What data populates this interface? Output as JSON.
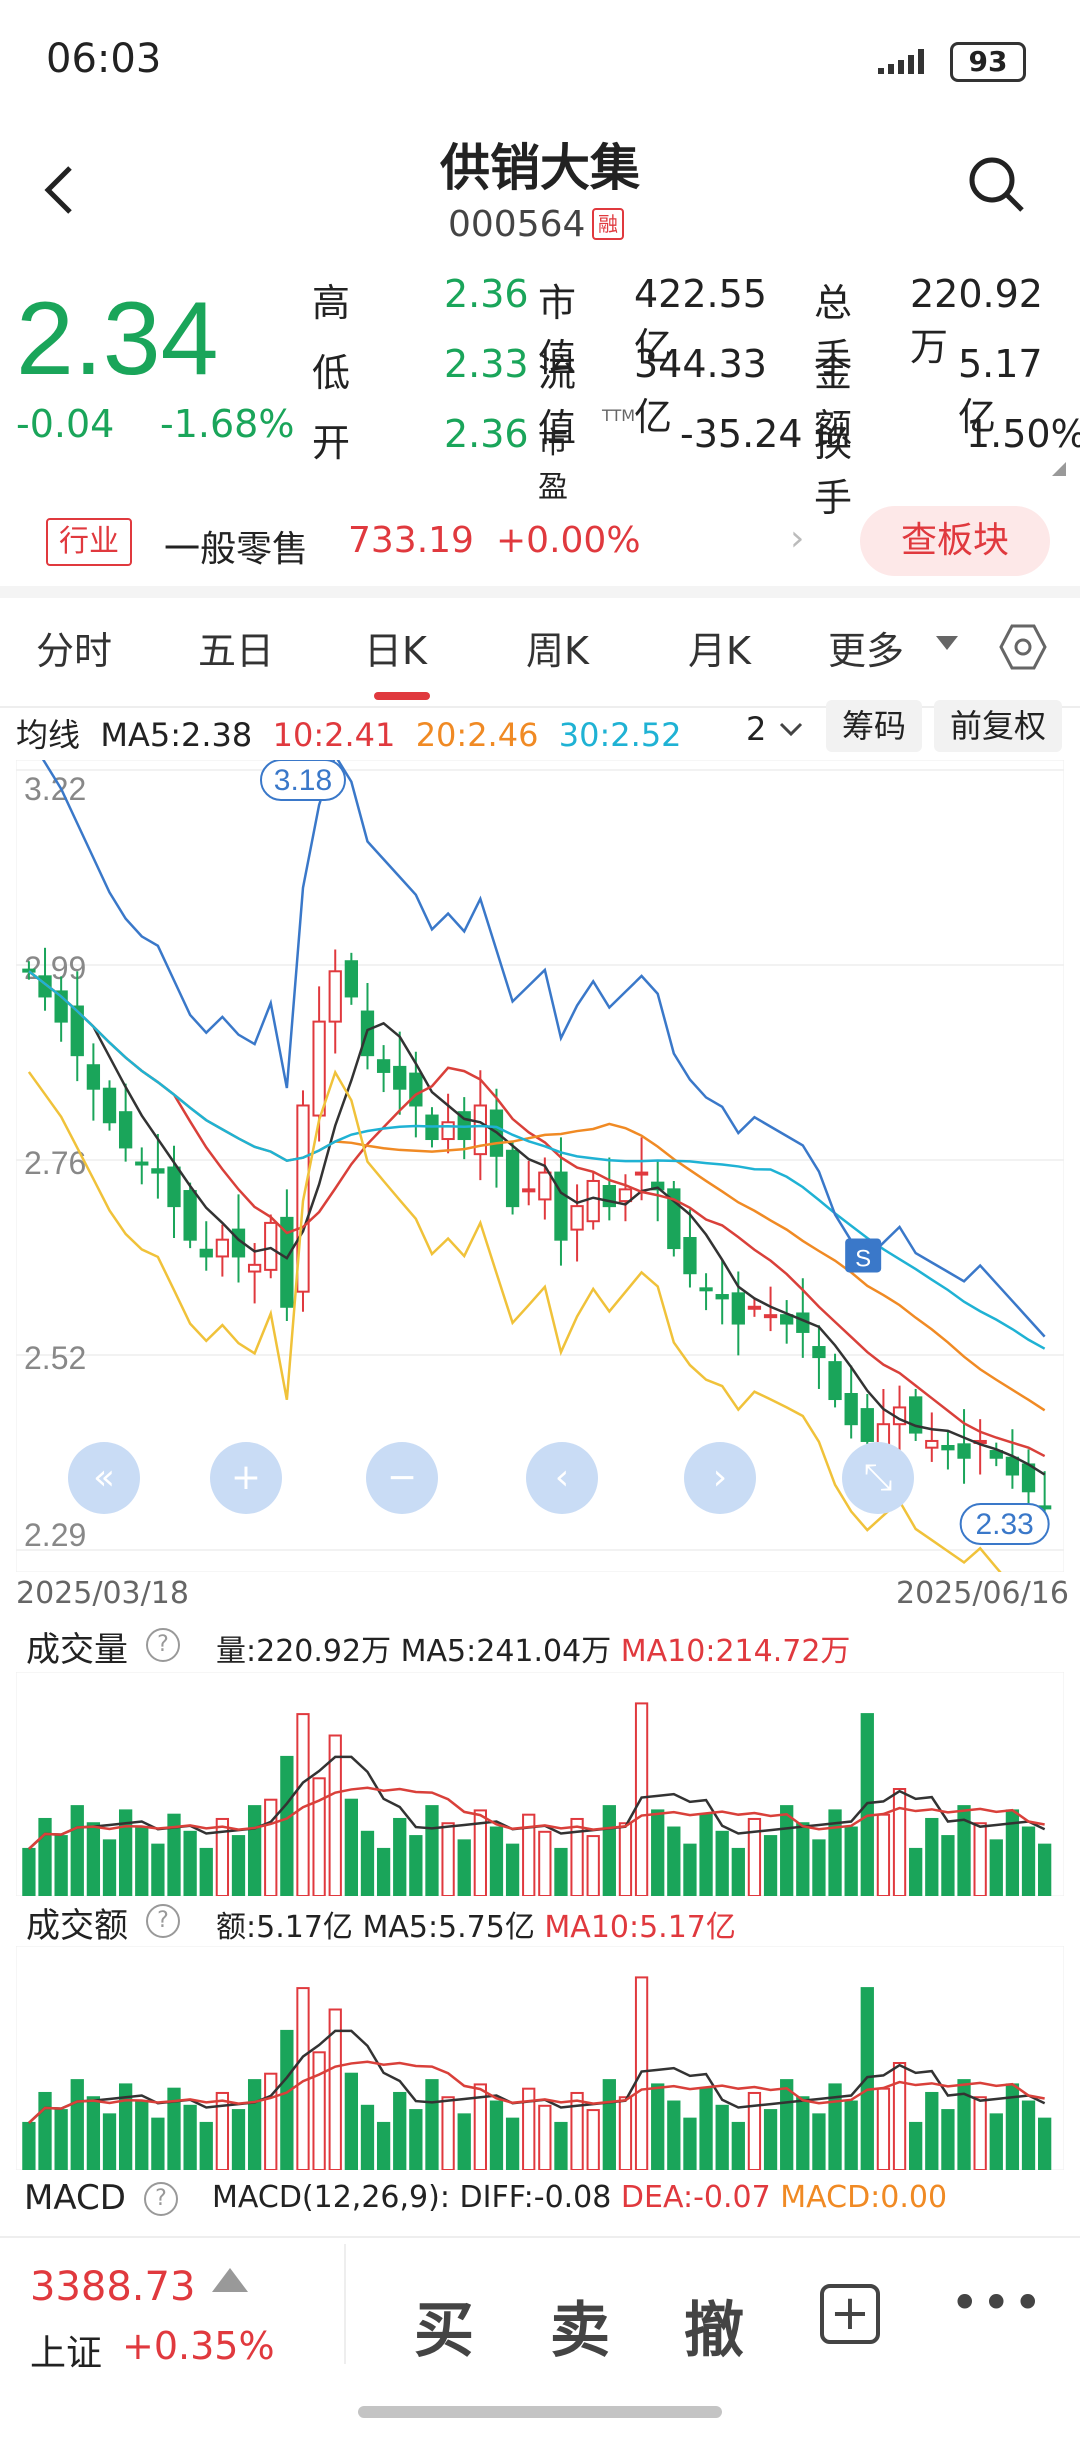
{
  "status": {
    "time": "06:03",
    "battery": "93"
  },
  "header": {
    "title": "供销大集",
    "code": "000564",
    "margin_badge": "融"
  },
  "quote": {
    "price": "2.34",
    "change": "-0.04",
    "change_pct": "-1.68%",
    "rows": [
      {
        "l1": "高",
        "v1": "2.36",
        "l2": "市值",
        "v2": "422.55亿",
        "l3": "总手",
        "v3": "220.92万"
      },
      {
        "l1": "低",
        "v1": "2.33",
        "l2": "流值",
        "v2": "344.33亿",
        "l3": "金额",
        "v3": "5.17亿"
      },
      {
        "l1": "开",
        "v1": "2.36",
        "l2": "市盈",
        "v2": "-35.24",
        "l3": "换手",
        "v3": "1.50%"
      }
    ],
    "pe_sup": "TTM"
  },
  "industry": {
    "tag": "行业",
    "name": "一般零售",
    "value": "733.19",
    "pct": "+0.00%",
    "button": "查板块"
  },
  "tabs": [
    "分时",
    "五日",
    "日K",
    "周K",
    "月K",
    "更多"
  ],
  "active_tab": "日K",
  "ma_row": {
    "label": "均线",
    "ma5": "MA5:2.38",
    "ma10": "10:2.41",
    "ma20": "20:2.46",
    "ma30": "30:2.52",
    "period": "2",
    "chip_btn": "筹码",
    "adjust_btn": "前复权"
  },
  "colors": {
    "green": "#1aa55a",
    "red": "#e0393e",
    "ma5": "#333333",
    "ma10": "#d9403a",
    "ma20": "#f08a24",
    "ma30": "#1fb2d4",
    "ma60": "#3a78c9",
    "amount": "#f0c23a"
  },
  "chart_data": {
    "type": "candlestick",
    "y_ticks": [
      "3.22",
      "2.99",
      "2.76",
      "2.52",
      "2.29"
    ],
    "ylim": [
      2.29,
      3.22
    ],
    "high_label": "3.18",
    "low_label": "2.33",
    "date_start": "2025/03/18",
    "date_end": "2025/06/16",
    "signal_label": "S",
    "closes": [
      2.98,
      2.95,
      2.92,
      2.88,
      2.84,
      2.8,
      2.77,
      2.75,
      2.74,
      2.7,
      2.66,
      2.64,
      2.66,
      2.64,
      2.63,
      2.68,
      2.58,
      2.82,
      2.92,
      2.98,
      2.95,
      2.88,
      2.86,
      2.84,
      2.82,
      2.78,
      2.8,
      2.78,
      2.82,
      2.76,
      2.7,
      2.72,
      2.74,
      2.66,
      2.7,
      2.73,
      2.7,
      2.72,
      2.74,
      2.72,
      2.65,
      2.62,
      2.6,
      2.59,
      2.56,
      2.58,
      2.57,
      2.56,
      2.55,
      2.52,
      2.47,
      2.44,
      2.42,
      2.44,
      2.46,
      2.43,
      2.42,
      2.41,
      2.4,
      2.42,
      2.4,
      2.38,
      2.36,
      2.34
    ],
    "volume": {
      "label": "成交量",
      "info": "量:220.92万",
      "ma5": "MA5:241.04万",
      "ma10": "MA10:214.72万"
    },
    "amount": {
      "label": "成交额",
      "info": "额:5.17亿",
      "ma5": "MA5:5.75亿",
      "ma10": "MA10:5.17亿"
    },
    "macd": {
      "label": "MACD",
      "info": "MACD(12,26,9):",
      "diff": "DIFF:-0.08",
      "dea": "DEA:-0.07",
      "macd": "MACD:0.00"
    }
  },
  "bottom": {
    "index_value": "3388.73",
    "index_name": "上证",
    "index_pct": "+0.35%",
    "buy": "买",
    "sell": "卖",
    "cancel": "撤",
    "more": "•••"
  }
}
